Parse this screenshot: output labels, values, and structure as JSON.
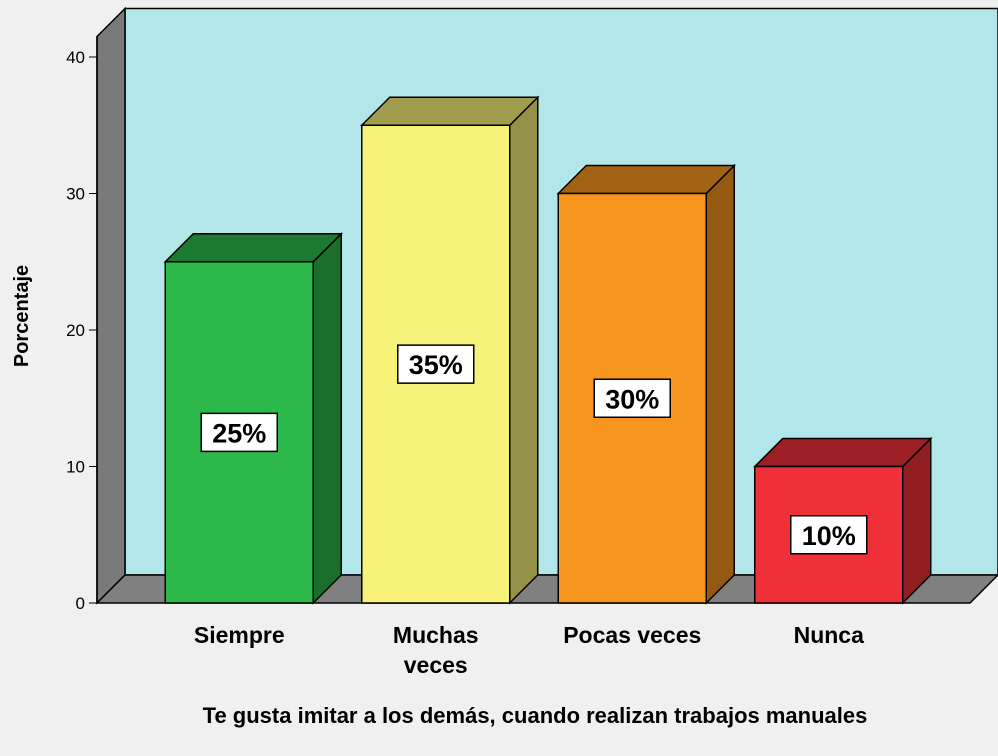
{
  "chart_data": {
    "type": "bar3d",
    "title": "Te gusta imitar a los demás, cuando realizan trabajos manuales",
    "y_label": "Porcentaje",
    "categories": [
      "Siempre",
      "Muchas veces",
      "Pocas veces",
      "Nunca"
    ],
    "values": [
      25,
      35,
      30,
      10
    ],
    "value_labels": [
      "25%",
      "35%",
      "30%",
      "10%"
    ],
    "colors": [
      "#2db84a",
      "#f7f27a",
      "#f7961e",
      "#ef3038"
    ],
    "ylim": [
      0,
      41.5
    ],
    "yticks": [
      0,
      10,
      20,
      30,
      40
    ]
  }
}
